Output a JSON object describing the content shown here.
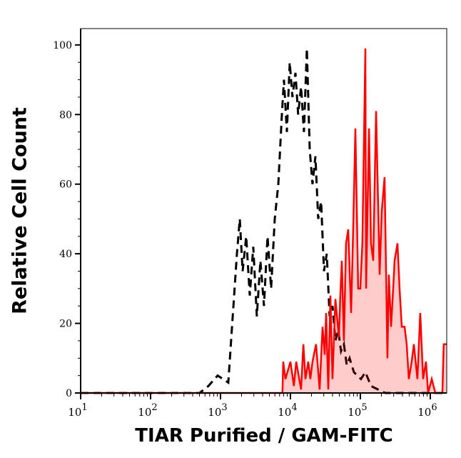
{
  "chart_data": {
    "type": "area",
    "title": "",
    "xlabel": "TIAR Purified / GAM-FITC",
    "ylabel": "Relative Cell Count",
    "x_scale": "log",
    "xlim": [
      10,
      1720000
    ],
    "ylim": [
      0,
      104.7
    ],
    "x_ticks": [
      10,
      100,
      1000,
      10000,
      100000,
      1000000
    ],
    "x_tick_exponents": [
      "1",
      "2",
      "3",
      "4",
      "5",
      "6"
    ],
    "y_ticks": [
      0,
      20,
      40,
      60,
      80,
      100
    ],
    "grid": false,
    "legend": "none",
    "series": [
      {
        "style": "dashed-line",
        "color": "#000000",
        "x": [
          10,
          500,
          671,
          910,
          1294,
          1717,
          1888,
          2072,
          2330,
          2620,
          2944,
          3311,
          3724,
          4188,
          4710,
          5297,
          5970,
          6710,
          7550,
          8090,
          8900,
          9770,
          10700,
          11800,
          12900,
          14200,
          15600,
          17200,
          18900,
          20700,
          22800,
          25000,
          27500,
          30200,
          33100,
          36400,
          40000,
          44000,
          48300,
          53000,
          58200,
          64000,
          70300,
          80900,
          102000,
          118000,
          142000,
          227000,
          1720000
        ],
        "y": [
          0,
          0,
          2,
          5,
          3,
          40,
          50,
          35,
          45,
          28,
          42,
          22,
          38,
          25,
          45,
          30,
          50,
          60,
          80,
          90,
          75,
          95,
          85,
          92,
          80,
          88,
          75,
          99,
          70,
          60,
          68,
          50,
          55,
          35,
          40,
          22,
          25,
          15,
          18,
          12,
          14,
          8,
          10,
          6,
          4,
          6,
          2,
          0,
          0
        ]
      },
      {
        "style": "filled-line",
        "color": "#ff0000",
        "fill": "#ffcccc",
        "x": [
          10,
          7700,
          7900,
          8500,
          10000,
          11200,
          12100,
          14200,
          15300,
          16400,
          18000,
          19300,
          20700,
          23300,
          26200,
          28800,
          30900,
          32400,
          34800,
          37300,
          40000,
          44000,
          49400,
          51800,
          54300,
          58200,
          62500,
          67100,
          73700,
          79000,
          84900,
          93200,
          100000,
          107000,
          118000,
          121000,
          133000,
          142000,
          153000,
          168000,
          189000,
          202000,
          222000,
          244000,
          256000,
          275000,
          302000,
          309000,
          340000,
          364000,
          391000,
          430000,
          460000,
          494000,
          543000,
          582000,
          655000,
          719000,
          790000,
          869000,
          932000,
          1050000,
          1180000,
          1490000,
          1560000,
          1720000
        ],
        "y": [
          0,
          0,
          9,
          4,
          9,
          2,
          9,
          1,
          14,
          4,
          9,
          4,
          9,
          14,
          1,
          19,
          11,
          23,
          1,
          28,
          4,
          27,
          16,
          28,
          38,
          15,
          43,
          47,
          23,
          47,
          76,
          30,
          30,
          43,
          99,
          30,
          76,
          43,
          38,
          81,
          34,
          52,
          62,
          10,
          34,
          19,
          34,
          38,
          43,
          30,
          19,
          19,
          14,
          4,
          9,
          14,
          4,
          23,
          4,
          9,
          0,
          4,
          0,
          0,
          14,
          14
        ]
      }
    ]
  }
}
